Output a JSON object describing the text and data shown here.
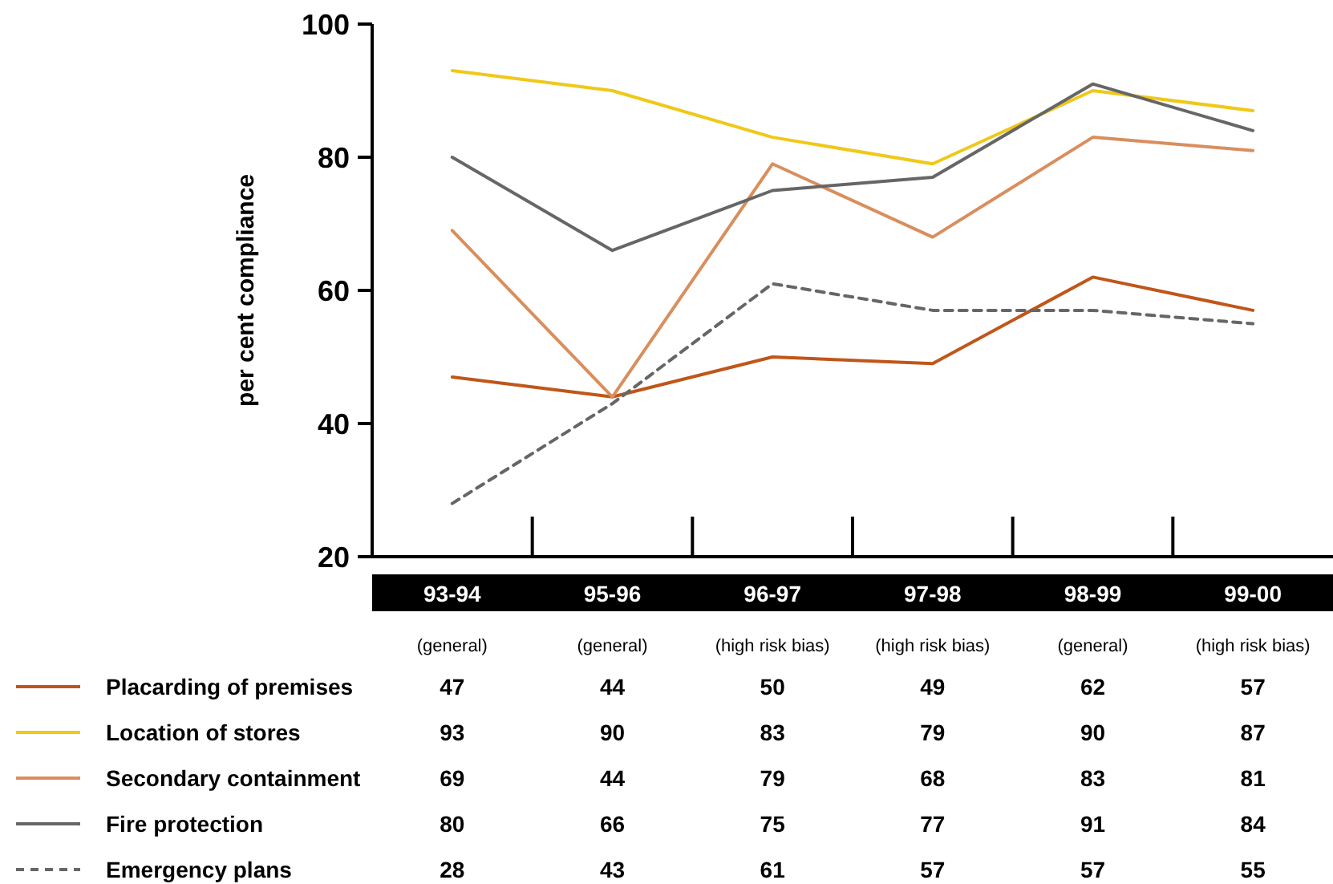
{
  "chart_data": {
    "type": "line",
    "ylabel": "per cent compliance",
    "categories": [
      "93-94\n(general)",
      "95-96\n(general)",
      "96-97\n(high risk bias)",
      "97-98\n(high risk bias)",
      "98-99\n(general)",
      "99-00\n(high risk bias)"
    ],
    "ylim": [
      20,
      100
    ],
    "yticks": [
      20,
      40,
      60,
      80,
      100
    ],
    "grid": false,
    "legend": "bottom left",
    "data_labels": true,
    "series": [
      {
        "name": "Placarding of premises",
        "color": "#c0561a",
        "line_style": "solid",
        "values": [
          47,
          44,
          50,
          49,
          62,
          57
        ]
      },
      {
        "name": "Location of stores",
        "color": "#f0c818",
        "line_style": "solid",
        "values": [
          93,
          90,
          83,
          79,
          90,
          87
        ]
      },
      {
        "name": "Secondary containment",
        "color": "#d98e5d",
        "line_style": "solid",
        "values": [
          69,
          44,
          79,
          68,
          83,
          81
        ]
      },
      {
        "name": "Fire protection",
        "color": "#666666",
        "line_style": "solid",
        "values": [
          80,
          66,
          75,
          77,
          91,
          84
        ]
      },
      {
        "name": "Emergency plans",
        "color": "#666666",
        "line_style": "dashed",
        "values": [
          28,
          43,
          61,
          57,
          57,
          55
        ]
      }
    ]
  }
}
